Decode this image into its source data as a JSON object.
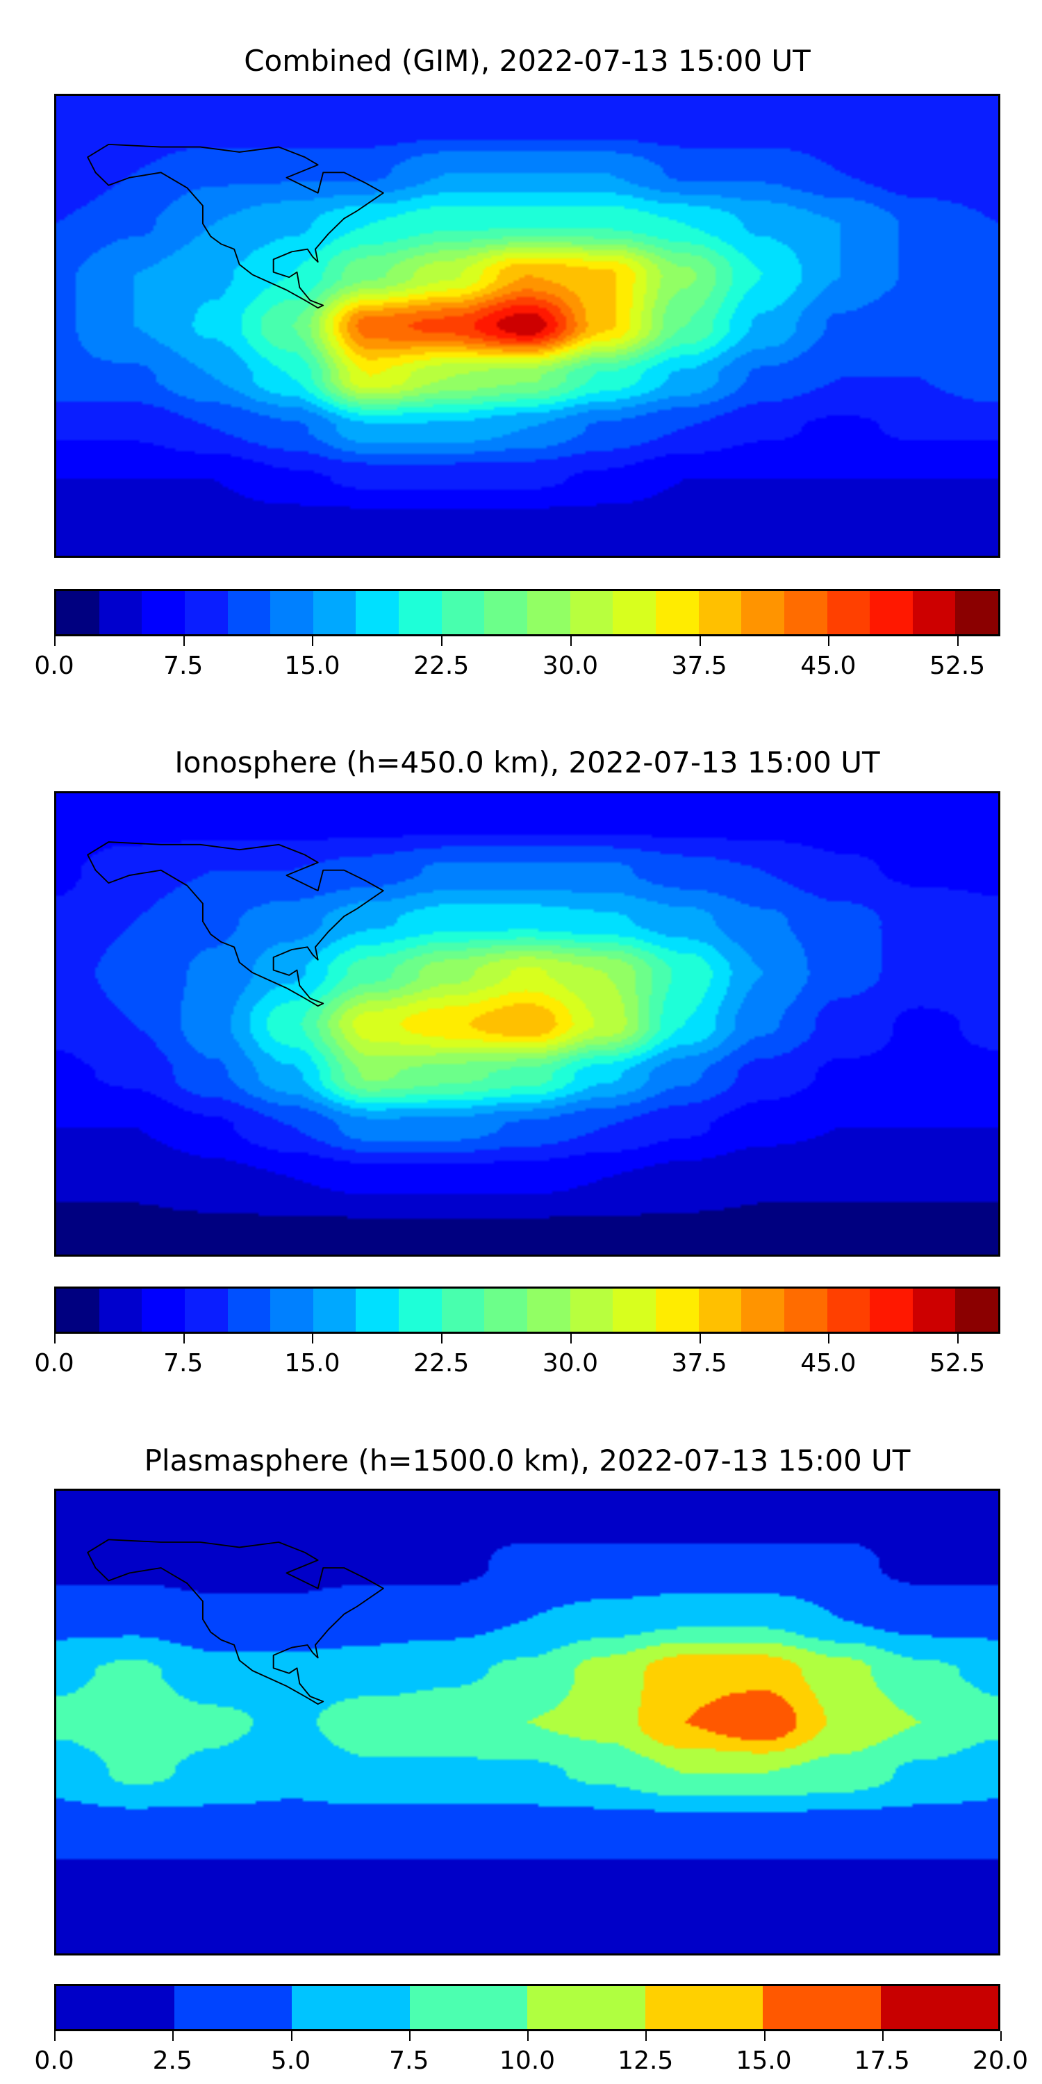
{
  "chart_data": [
    {
      "type": "heatmap",
      "title": "Combined (GIM), 2022-07-13 15:00 UT",
      "projection": "equirectangular world map with coastlines",
      "lon": [
        -180,
        -150,
        -120,
        -90,
        -60,
        -30,
        0,
        30,
        60,
        90,
        120,
        150,
        180
      ],
      "lat": [
        80,
        60,
        40,
        20,
        0,
        -20,
        -40,
        -60,
        -80
      ],
      "values": [
        [
          8,
          8,
          8,
          8,
          8,
          8,
          8,
          8,
          8,
          8,
          8,
          8,
          8
        ],
        [
          8,
          10,
          12,
          12,
          12,
          15,
          15,
          15,
          12,
          12,
          10,
          8,
          8
        ],
        [
          10,
          12,
          15,
          17,
          20,
          22,
          22,
          22,
          20,
          17,
          15,
          12,
          10
        ],
        [
          12,
          15,
          17,
          20,
          27,
          32,
          40,
          38,
          28,
          20,
          15,
          12,
          12
        ],
        [
          12,
          15,
          18,
          25,
          44,
          46,
          52,
          38,
          25,
          17,
          12,
          10,
          12
        ],
        [
          12,
          12,
          15,
          20,
          35,
          30,
          28,
          22,
          17,
          12,
          10,
          10,
          12
        ],
        [
          8,
          8,
          10,
          12,
          17,
          17,
          15,
          12,
          10,
          8,
          7,
          8,
          8
        ],
        [
          5,
          5,
          5,
          7,
          8,
          8,
          8,
          7,
          5,
          5,
          5,
          5,
          5
        ],
        [
          3,
          3,
          3,
          3,
          3,
          3,
          3,
          3,
          3,
          3,
          3,
          3,
          3
        ]
      ],
      "colorbar": {
        "levels_min": 0,
        "levels_max": 55,
        "step": 2.5,
        "ticks": [
          "0.0",
          "7.5",
          "15.0",
          "22.5",
          "30.0",
          "37.5",
          "45.0",
          "52.5"
        ],
        "tick_values": [
          0,
          7.5,
          15,
          22.5,
          30,
          37.5,
          45,
          52.5
        ],
        "colors": [
          "#000080",
          "#0000cd",
          "#0000ff",
          "#0a1eff",
          "#0050ff",
          "#0080ff",
          "#00a8ff",
          "#00e0ff",
          "#1effd8",
          "#48ffae",
          "#6cff8a",
          "#92ff64",
          "#b8ff3e",
          "#d8ff1e",
          "#ffec00",
          "#ffc000",
          "#ff9400",
          "#ff6c00",
          "#ff4000",
          "#ff1800",
          "#cd0000",
          "#8b0000"
        ]
      }
    },
    {
      "type": "heatmap",
      "title": "Ionosphere  (h=450.0 km), 2022-07-13 15:00 UT",
      "projection": "equirectangular world map with coastlines",
      "lon": [
        -180,
        -150,
        -120,
        -90,
        -60,
        -30,
        0,
        30,
        60,
        90,
        120,
        150,
        180
      ],
      "lat": [
        80,
        60,
        40,
        20,
        0,
        -20,
        -40,
        -60,
        -80
      ],
      "values": [
        [
          6,
          6,
          6,
          6,
          6,
          6,
          6,
          6,
          6,
          6,
          6,
          6,
          6
        ],
        [
          7,
          9,
          10,
          10,
          11,
          13,
          13,
          13,
          11,
          10,
          8,
          7,
          7
        ],
        [
          8,
          10,
          12,
          14,
          17,
          19,
          19,
          18,
          16,
          13,
          11,
          9,
          8
        ],
        [
          9,
          11,
          13,
          17,
          24,
          29,
          33,
          30,
          22,
          15,
          11,
          9,
          9
        ],
        [
          8,
          10,
          14,
          22,
          34,
          37,
          40,
          32,
          20,
          13,
          9,
          7,
          8
        ],
        [
          7,
          8,
          12,
          17,
          28,
          26,
          24,
          18,
          13,
          9,
          7,
          7,
          7
        ],
        [
          5,
          5,
          7,
          10,
          14,
          14,
          12,
          10,
          8,
          6,
          5,
          5,
          5
        ],
        [
          3,
          3,
          4,
          5,
          6,
          6,
          6,
          5,
          4,
          3,
          3,
          3,
          3
        ],
        [
          2,
          2,
          2,
          2,
          2,
          2,
          2,
          2,
          2,
          2,
          2,
          2,
          2
        ]
      ],
      "colorbar": {
        "levels_min": 0,
        "levels_max": 55,
        "step": 2.5,
        "ticks": [
          "0.0",
          "7.5",
          "15.0",
          "22.5",
          "30.0",
          "37.5",
          "45.0",
          "52.5"
        ],
        "tick_values": [
          0,
          7.5,
          15,
          22.5,
          30,
          37.5,
          45,
          52.5
        ],
        "colors": [
          "#000080",
          "#0000cd",
          "#0000ff",
          "#0a1eff",
          "#0050ff",
          "#0080ff",
          "#00a8ff",
          "#00e0ff",
          "#1effd8",
          "#48ffae",
          "#6cff8a",
          "#92ff64",
          "#b8ff3e",
          "#d8ff1e",
          "#ffec00",
          "#ffc000",
          "#ff9400",
          "#ff6c00",
          "#ff4000",
          "#ff1800",
          "#cd0000",
          "#8b0000"
        ]
      }
    },
    {
      "type": "heatmap",
      "title": "Plasmasphere (h=1500.0 km), 2022-07-13 15:00 UT",
      "projection": "equirectangular world map with coastlines",
      "lon": [
        -180,
        -150,
        -120,
        -90,
        -60,
        -30,
        0,
        30,
        60,
        90,
        120,
        150,
        180
      ],
      "lat": [
        80,
        60,
        40,
        20,
        0,
        -20,
        -40,
        -60,
        -80
      ],
      "values": [
        [
          2,
          2,
          2,
          2,
          2,
          2,
          2,
          2,
          2,
          2,
          2,
          2,
          2
        ],
        [
          2,
          2,
          2,
          2,
          2,
          2,
          3,
          3,
          3,
          3,
          3,
          2,
          2
        ],
        [
          4,
          4,
          3,
          3,
          4,
          4,
          5,
          6,
          7,
          7,
          5,
          4,
          4
        ],
        [
          7,
          8,
          6,
          6,
          6,
          7,
          8,
          11,
          14,
          14,
          11,
          8,
          7
        ],
        [
          8,
          9,
          8,
          7,
          9,
          9,
          10,
          11,
          15,
          17,
          12,
          10,
          8
        ],
        [
          6,
          8,
          7,
          6,
          7,
          7,
          7,
          8,
          10,
          10,
          9,
          7,
          6
        ],
        [
          4,
          4,
          4,
          4,
          4,
          4,
          4,
          4,
          4,
          4,
          4,
          4,
          4
        ],
        [
          2,
          2,
          2,
          2,
          2,
          2,
          2,
          2,
          2,
          2,
          2,
          2,
          2
        ],
        [
          1,
          1,
          1,
          1,
          1,
          1,
          1,
          1,
          1,
          1,
          1,
          1,
          1
        ]
      ],
      "colorbar": {
        "levels_min": 0,
        "levels_max": 20,
        "step": 2.5,
        "ticks": [
          "0.0",
          "2.5",
          "5.0",
          "7.5",
          "10.0",
          "12.5",
          "15.0",
          "17.5",
          "20.0"
        ],
        "tick_values": [
          0,
          2.5,
          5,
          7.5,
          10,
          12.5,
          15,
          17.5,
          20
        ],
        "colors": [
          "#0000c8",
          "#0044ff",
          "#00c4ff",
          "#4cffb0",
          "#b0ff40",
          "#ffd000",
          "#ff5800",
          "#c80000"
        ]
      }
    }
  ]
}
